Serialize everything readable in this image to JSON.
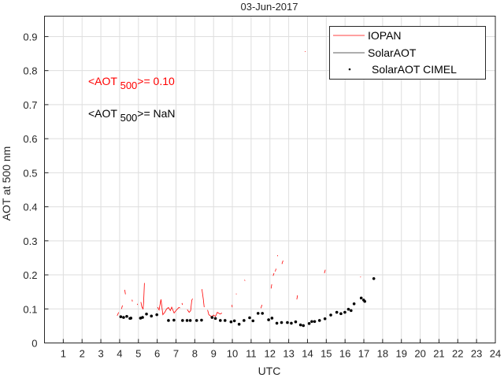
{
  "chart_data": {
    "type": "line",
    "title": "03-Jun-2017",
    "xlabel": "UTC",
    "ylabel": "AOT at 500 nm",
    "xlim": [
      0,
      24
    ],
    "ylim": [
      0,
      0.96
    ],
    "xticks": [
      1,
      2,
      3,
      4,
      5,
      6,
      7,
      8,
      9,
      10,
      11,
      12,
      13,
      14,
      15,
      16,
      17,
      18,
      19,
      20,
      21,
      22,
      23,
      24
    ],
    "yticks": [
      0,
      0.1,
      0.2,
      0.3,
      0.4,
      0.5,
      0.6,
      0.7,
      0.8,
      0.9
    ],
    "ytick_labels": [
      "0",
      "0.1",
      "0.2",
      "0.3",
      "0.4",
      "0.5",
      "0.6",
      "0.7",
      "0.8",
      "0.9"
    ],
    "grid": true,
    "legend_position": "top-right",
    "legend": [
      {
        "label": "IOPAN",
        "style": "line",
        "color": "#ff0000"
      },
      {
        "label": "SolarAOT",
        "style": "line",
        "color": "#000000"
      },
      {
        "label": "SolarAOT CIMEL",
        "style": "dot",
        "color": "#000000"
      }
    ],
    "annotations": [
      {
        "prefix": "<AOT ",
        "sub": "500",
        "suffix": ">= 0.10",
        "color": "#ff0000"
      },
      {
        "prefix": "<AOT ",
        "sub": "500",
        "suffix": ">=  NaN",
        "color": "#000000"
      }
    ],
    "series": [
      {
        "name": "IOPAN",
        "color": "#ff0000",
        "segments": [
          [
            [
              3.87,
              0.08
            ],
            [
              3.95,
              0.09
            ]
          ],
          [
            [
              4.1,
              0.1
            ],
            [
              4.15,
              0.11
            ]
          ],
          [
            [
              4.27,
              0.156
            ],
            [
              4.31,
              0.143
            ]
          ],
          [
            [
              4.66,
              0.127
            ],
            [
              4.68,
              0.122
            ]
          ],
          [
            [
              4.94,
              0.115
            ],
            [
              4.96,
              0.112
            ]
          ],
          [
            [
              5.13,
              0.12
            ],
            [
              5.18,
              0.106
            ],
            [
              5.25,
              0.1
            ],
            [
              5.28,
              0.12
            ],
            [
              5.32,
              0.176
            ]
          ],
          [
            [
              6.02,
              0.105
            ],
            [
              6.1,
              0.097
            ],
            [
              6.2,
              0.128
            ],
            [
              6.3,
              0.083
            ],
            [
              6.4,
              0.09
            ],
            [
              6.5,
              0.1
            ],
            [
              6.6,
              0.104
            ],
            [
              6.7,
              0.095
            ],
            [
              6.77,
              0.105
            ],
            [
              6.9,
              0.088
            ],
            [
              7.0,
              0.095
            ],
            [
              7.15,
              0.104
            ],
            [
              7.22,
              0.103
            ]
          ],
          [
            [
              7.32,
              0.117
            ],
            [
              7.34,
              0.112
            ]
          ],
          [
            [
              7.6,
              0.098
            ],
            [
              7.7,
              0.09
            ],
            [
              7.78,
              0.095
            ],
            [
              7.84,
              0.125
            ],
            [
              7.88,
              0.13
            ]
          ],
          [
            [
              8.38,
              0.158
            ],
            [
              8.45,
              0.13
            ],
            [
              8.5,
              0.105
            ]
          ],
          [
            [
              8.68,
              0.097
            ],
            [
              8.75,
              0.083
            ],
            [
              8.9,
              0.077
            ],
            [
              9.0,
              0.082
            ],
            [
              9.1,
              0.078
            ],
            [
              9.2,
              0.09
            ],
            [
              9.35,
              0.085
            ],
            [
              9.45,
              0.088
            ]
          ],
          [
            [
              9.98,
              0.112
            ],
            [
              9.99,
              0.105
            ]
          ],
          [
            [
              10.2,
              0.145
            ],
            [
              10.22,
              0.143
            ]
          ],
          [
            [
              10.64,
              0.185
            ],
            [
              10.68,
              0.183
            ]
          ],
          [
            [
              11.52,
              0.102
            ],
            [
              11.58,
              0.112
            ]
          ],
          [
            [
              12.06,
              0.16
            ],
            [
              12.1,
              0.172
            ]
          ],
          [
            [
              12.17,
              0.197
            ],
            [
              12.22,
              0.205
            ]
          ],
          [
            [
              12.28,
              0.21
            ],
            [
              12.33,
              0.218
            ]
          ],
          [
            [
              12.4,
              0.258
            ],
            [
              12.41,
              0.255
            ]
          ],
          [
            [
              12.64,
              0.232
            ],
            [
              12.7,
              0.242
            ]
          ],
          [
            [
              13.43,
              0.128
            ],
            [
              13.47,
              0.14
            ]
          ],
          [
            [
              13.87,
              0.857
            ],
            [
              13.89,
              0.855
            ]
          ],
          [
            [
              14.9,
              0.205
            ],
            [
              14.95,
              0.215
            ]
          ],
          [
            [
              16.82,
              0.195
            ],
            [
              16.83,
              0.193
            ]
          ]
        ]
      },
      {
        "name": "SolarAOT",
        "color": "#000000",
        "segments": []
      },
      {
        "name": "SolarAOT CIMEL",
        "color": "#000000",
        "points": [
          [
            4.06,
            0.077
          ],
          [
            4.21,
            0.075
          ],
          [
            4.38,
            0.078
          ],
          [
            4.55,
            0.072
          ],
          [
            4.6,
            0.073
          ],
          [
            5.11,
            0.073
          ],
          [
            5.22,
            0.075
          ],
          [
            5.43,
            0.085
          ],
          [
            5.69,
            0.079
          ],
          [
            5.98,
            0.083
          ],
          [
            6.6,
            0.066
          ],
          [
            6.89,
            0.067
          ],
          [
            7.35,
            0.066
          ],
          [
            7.59,
            0.066
          ],
          [
            7.76,
            0.066
          ],
          [
            8.1,
            0.066
          ],
          [
            8.36,
            0.067
          ],
          [
            8.92,
            0.075
          ],
          [
            9.1,
            0.072
          ],
          [
            9.36,
            0.066
          ],
          [
            9.61,
            0.066
          ],
          [
            9.93,
            0.062
          ],
          [
            10.11,
            0.065
          ],
          [
            10.36,
            0.055
          ],
          [
            10.62,
            0.066
          ],
          [
            10.92,
            0.074
          ],
          [
            11.1,
            0.065
          ],
          [
            11.37,
            0.087
          ],
          [
            11.6,
            0.087
          ],
          [
            11.93,
            0.068
          ],
          [
            12.11,
            0.073
          ],
          [
            12.37,
            0.058
          ],
          [
            12.62,
            0.06
          ],
          [
            12.93,
            0.06
          ],
          [
            13.14,
            0.058
          ],
          [
            13.37,
            0.062
          ],
          [
            13.63,
            0.053
          ],
          [
            13.78,
            0.051
          ],
          [
            14.09,
            0.057
          ],
          [
            14.23,
            0.063
          ],
          [
            14.38,
            0.063
          ],
          [
            14.64,
            0.066
          ],
          [
            14.93,
            0.071
          ],
          [
            15.24,
            0.082
          ],
          [
            15.56,
            0.09
          ],
          [
            15.78,
            0.086
          ],
          [
            15.99,
            0.09
          ],
          [
            16.18,
            0.099
          ],
          [
            16.32,
            0.095
          ],
          [
            16.48,
            0.115
          ],
          [
            16.86,
            0.132
          ],
          [
            16.99,
            0.126
          ],
          [
            17.05,
            0.122
          ],
          [
            17.53,
            0.189
          ]
        ]
      }
    ]
  }
}
